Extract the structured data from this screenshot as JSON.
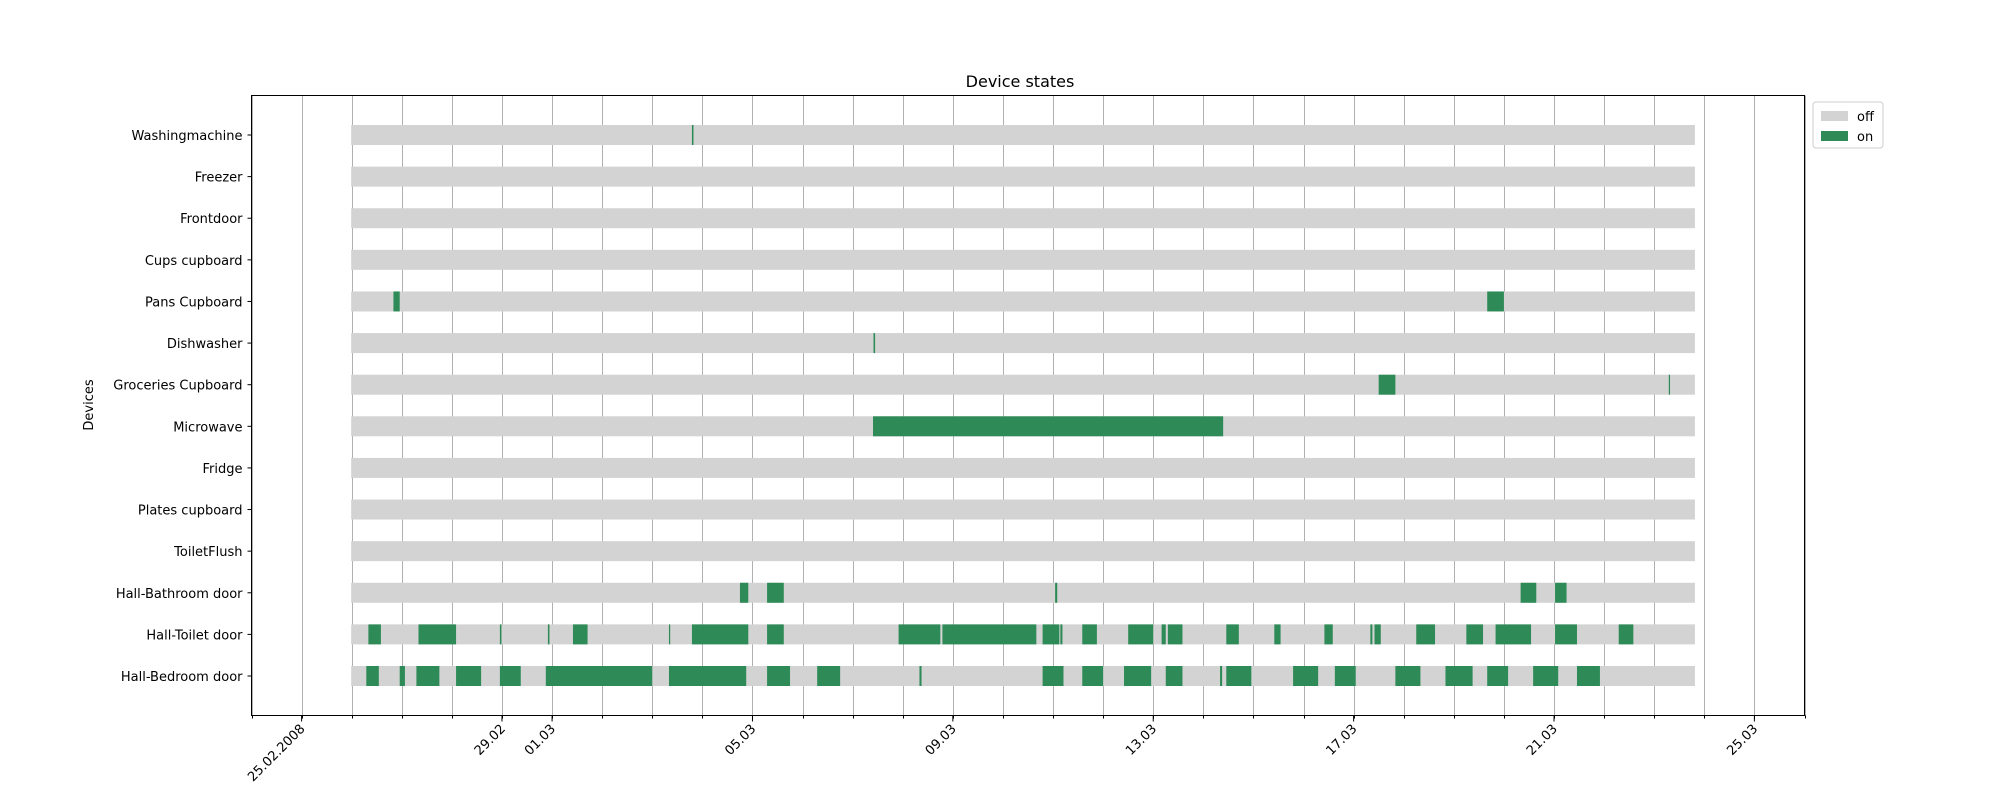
{
  "chart_data": {
    "type": "gantt",
    "title": "Device states",
    "ylabel": "Devices",
    "xlabel": "",
    "x_domain": [
      "2008-02-24",
      "2008-03-26"
    ],
    "x_ticks": [
      {
        "date": "2008-02-25",
        "label": "25.02.2008"
      },
      {
        "date": "2008-02-29",
        "label": "29.02"
      },
      {
        "date": "2008-03-01",
        "label": "01.03"
      },
      {
        "date": "2008-03-05",
        "label": "05.03"
      },
      {
        "date": "2008-03-09",
        "label": "09.03"
      },
      {
        "date": "2008-03-13",
        "label": "13.03"
      },
      {
        "date": "2008-03-17",
        "label": "17.03"
      },
      {
        "date": "2008-03-21",
        "label": "21.03"
      },
      {
        "date": "2008-03-25",
        "label": "25.03"
      }
    ],
    "x_minor_tick_interval_days": 1,
    "x_grid_interval_days": 1,
    "grid": true,
    "legend": {
      "placement": "outside-top-right",
      "entries": [
        {
          "label": "off",
          "color": "#d3d3d3"
        },
        {
          "label": "on",
          "color": "#2e8b57"
        }
      ]
    },
    "observation_window": [
      "2008-02-25T23:45",
      "2008-03-23T19:30"
    ],
    "devices": [
      "Washingmachine",
      "Freezer",
      "Frontdoor",
      "Cups cupboard",
      "Pans Cupboard",
      "Dishwasher",
      "Groceries Cupboard",
      "Microwave",
      "Fridge",
      "Plates cupboard",
      "ToiletFlush",
      "Hall-Bathroom door",
      "Hall-Toilet door",
      "Hall-Bedroom door"
    ],
    "on_intervals": {
      "Washingmachine": [
        [
          "2008-03-03T19:00",
          "2008-03-03T19:45"
        ]
      ],
      "Freezer": [],
      "Frontdoor": [],
      "Cups cupboard": [],
      "Pans Cupboard": [
        [
          "2008-02-26T20:00",
          "2008-02-26T23:00"
        ],
        [
          "2008-03-19T16:00",
          "2008-03-20T00:00"
        ]
      ],
      "Dishwasher": [
        [
          "2008-03-07T10:00",
          "2008-03-07T10:45"
        ]
      ],
      "Groceries Cupboard": [
        [
          "2008-03-17T12:00",
          "2008-03-17T20:00"
        ],
        [
          "2008-03-23T07:00",
          "2008-03-23T07:30"
        ]
      ],
      "Microwave": [
        [
          "2008-03-07T09:45",
          "2008-03-14T09:30"
        ]
      ],
      "Fridge": [],
      "Plates cupboard": [],
      "ToiletFlush": [],
      "Hall-Bathroom door": [
        [
          "2008-03-04T18:00",
          "2008-03-04T22:00"
        ],
        [
          "2008-03-05T07:00",
          "2008-03-05T15:00"
        ],
        [
          "2008-03-11T01:00",
          "2008-03-11T02:00"
        ],
        [
          "2008-03-20T08:00",
          "2008-03-20T15:30"
        ],
        [
          "2008-03-21T00:30",
          "2008-03-21T06:00"
        ]
      ],
      "Hall-Toilet door": [
        [
          "2008-02-26T08:00",
          "2008-02-26T14:00"
        ],
        [
          "2008-02-27T08:00",
          "2008-02-28T02:00"
        ],
        [
          "2008-02-28T23:00",
          "2008-02-28T23:45"
        ],
        [
          "2008-02-29T22:00",
          "2008-02-29T22:45"
        ],
        [
          "2008-03-01T10:00",
          "2008-03-01T17:00"
        ],
        [
          "2008-03-03T08:00",
          "2008-03-03T08:30"
        ],
        [
          "2008-03-03T19:00",
          "2008-03-04T22:00"
        ],
        [
          "2008-03-05T07:00",
          "2008-03-05T15:00"
        ],
        [
          "2008-03-07T22:00",
          "2008-03-08T18:00"
        ],
        [
          "2008-03-08T19:00",
          "2008-03-10T16:00"
        ],
        [
          "2008-03-10T19:00",
          "2008-03-11T03:00"
        ],
        [
          "2008-03-11T03:30",
          "2008-03-11T04:30"
        ],
        [
          "2008-03-11T14:00",
          "2008-03-11T21:00"
        ],
        [
          "2008-03-12T12:00",
          "2008-03-13T00:00"
        ],
        [
          "2008-03-13T04:00",
          "2008-03-13T06:00"
        ],
        [
          "2008-03-13T07:00",
          "2008-03-13T14:00"
        ],
        [
          "2008-03-14T11:00",
          "2008-03-14T17:00"
        ],
        [
          "2008-03-15T10:00",
          "2008-03-15T13:00"
        ],
        [
          "2008-03-16T10:00",
          "2008-03-16T14:00"
        ],
        [
          "2008-03-17T08:00",
          "2008-03-17T09:00"
        ],
        [
          "2008-03-17T10:00",
          "2008-03-17T13:00"
        ],
        [
          "2008-03-18T06:00",
          "2008-03-18T15:00"
        ],
        [
          "2008-03-19T06:00",
          "2008-03-19T14:00"
        ],
        [
          "2008-03-19T20:00",
          "2008-03-20T13:00"
        ],
        [
          "2008-03-21T00:30",
          "2008-03-21T11:00"
        ],
        [
          "2008-03-22T07:00",
          "2008-03-22T14:00"
        ]
      ],
      "Hall-Bedroom door": [
        [
          "2008-02-26T07:00",
          "2008-02-26T13:00"
        ],
        [
          "2008-02-26T23:00",
          "2008-02-27T01:30"
        ],
        [
          "2008-02-27T07:00",
          "2008-02-27T18:00"
        ],
        [
          "2008-02-28T02:00",
          "2008-02-28T14:00"
        ],
        [
          "2008-02-28T23:00",
          "2008-02-29T09:00"
        ],
        [
          "2008-02-29T21:00",
          "2008-03-03T00:00"
        ],
        [
          "2008-03-03T08:00",
          "2008-03-04T21:00"
        ],
        [
          "2008-03-05T07:00",
          "2008-03-05T18:00"
        ],
        [
          "2008-03-06T07:00",
          "2008-03-06T18:00"
        ],
        [
          "2008-03-08T08:00",
          "2008-03-08T09:00"
        ],
        [
          "2008-03-10T19:00",
          "2008-03-11T05:00"
        ],
        [
          "2008-03-11T14:00",
          "2008-03-12T00:00"
        ],
        [
          "2008-03-12T10:00",
          "2008-03-12T23:00"
        ],
        [
          "2008-03-13T06:00",
          "2008-03-13T14:00"
        ],
        [
          "2008-03-14T08:00",
          "2008-03-14T09:00"
        ],
        [
          "2008-03-14T11:00",
          "2008-03-14T23:00"
        ],
        [
          "2008-03-15T19:00",
          "2008-03-16T07:00"
        ],
        [
          "2008-03-16T15:00",
          "2008-03-17T01:00"
        ],
        [
          "2008-03-17T20:00",
          "2008-03-18T08:00"
        ],
        [
          "2008-03-18T20:00",
          "2008-03-19T09:00"
        ],
        [
          "2008-03-19T16:00",
          "2008-03-20T02:00"
        ],
        [
          "2008-03-20T14:00",
          "2008-03-21T02:00"
        ],
        [
          "2008-03-21T11:00",
          "2008-03-21T22:00"
        ]
      ]
    }
  }
}
